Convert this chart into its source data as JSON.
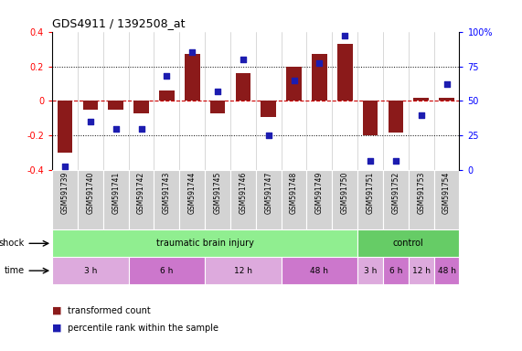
{
  "title": "GDS4911 / 1392508_at",
  "samples": [
    "GSM591739",
    "GSM591740",
    "GSM591741",
    "GSM591742",
    "GSM591743",
    "GSM591744",
    "GSM591745",
    "GSM591746",
    "GSM591747",
    "GSM591748",
    "GSM591749",
    "GSM591750",
    "GSM591751",
    "GSM591752",
    "GSM591753",
    "GSM591754"
  ],
  "bar_values": [
    -0.3,
    -0.05,
    -0.05,
    -0.07,
    0.06,
    0.27,
    -0.07,
    0.16,
    -0.09,
    0.2,
    0.27,
    0.33,
    -0.2,
    -0.18,
    0.02,
    0.02
  ],
  "dot_values": [
    3,
    35,
    30,
    30,
    68,
    85,
    57,
    80,
    25,
    65,
    77,
    97,
    7,
    7,
    40,
    62
  ],
  "ylim_left": [
    -0.4,
    0.4
  ],
  "ylim_right": [
    0,
    100
  ],
  "bar_color": "#8B1A1A",
  "dot_color": "#1C1CB0",
  "dotted_line_color": "#000000",
  "zero_line_color": "#CC0000",
  "shock_groups": [
    {
      "label": "traumatic brain injury",
      "start": 0,
      "end": 12,
      "color": "#90EE90"
    },
    {
      "label": "control",
      "start": 12,
      "end": 16,
      "color": "#66CC66"
    }
  ],
  "time_groups": [
    {
      "label": "3 h",
      "start": 0,
      "end": 3,
      "color": "#DDAADD"
    },
    {
      "label": "6 h",
      "start": 3,
      "end": 6,
      "color": "#CC77CC"
    },
    {
      "label": "12 h",
      "start": 6,
      "end": 9,
      "color": "#DDAADD"
    },
    {
      "label": "48 h",
      "start": 9,
      "end": 12,
      "color": "#CC77CC"
    },
    {
      "label": "3 h",
      "start": 12,
      "end": 13,
      "color": "#DDAADD"
    },
    {
      "label": "6 h",
      "start": 13,
      "end": 14,
      "color": "#CC77CC"
    },
    {
      "label": "12 h",
      "start": 14,
      "end": 15,
      "color": "#DDAADD"
    },
    {
      "label": "48 h",
      "start": 15,
      "end": 16,
      "color": "#CC77CC"
    }
  ],
  "legend_bar_label": "transformed count",
  "legend_dot_label": "percentile rank within the sample",
  "shock_label": "shock",
  "time_label": "time",
  "sample_bg_color": "#D3D3D3",
  "right_yticks": [
    0,
    25,
    50,
    75,
    100
  ],
  "right_yticklabels": [
    "0",
    "25",
    "50",
    "75",
    "100%"
  ],
  "left_yticks": [
    -0.4,
    -0.2,
    0.0,
    0.2,
    0.4
  ],
  "left_yticklabels": [
    "-0.4",
    "-0.2",
    "0",
    "0.2",
    "0.4"
  ]
}
